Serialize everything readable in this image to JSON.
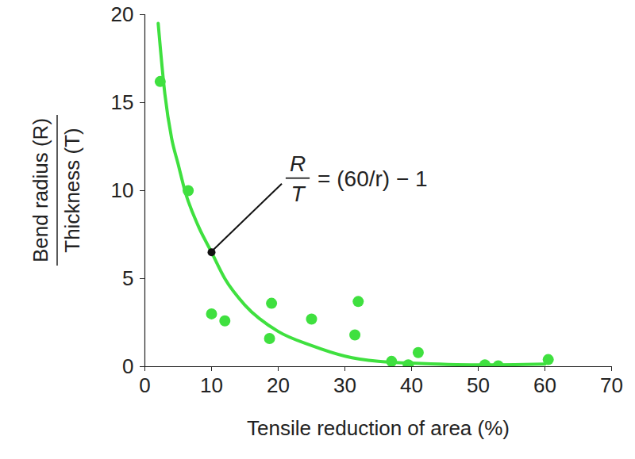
{
  "chart_data": {
    "type": "scatter",
    "x_label": "Tensile reduction of area (%)",
    "y_label": {
      "numerator": "Bend radius (R)",
      "denominator": "Thickness (T)"
    },
    "xlim": [
      0,
      70
    ],
    "xticks": [
      0,
      10,
      20,
      30,
      40,
      50,
      60,
      70
    ],
    "ylim": [
      0,
      20
    ],
    "yticks": [
      0,
      5,
      10,
      15,
      20
    ],
    "grid": false,
    "series": [
      {
        "type": "scatter",
        "color": "#3fe03f",
        "marker": "circle",
        "x": [
          2.3,
          6.5,
          10,
          12,
          18.7,
          19,
          25,
          31.5,
          32,
          37,
          39.5,
          41,
          51,
          53,
          60.5
        ],
        "values": [
          16.2,
          10,
          3,
          2.6,
          1.6,
          3.6,
          2.7,
          1.8,
          3.7,
          0.3,
          0.1,
          0.8,
          0.1,
          0.05,
          0.4
        ]
      },
      {
        "type": "line",
        "color": "#3fe03f",
        "line_style": "solid",
        "x": [
          2,
          3,
          4,
          5,
          6,
          8,
          10,
          12,
          15,
          20,
          25,
          30,
          35,
          40,
          50,
          60
        ],
        "values": [
          19.5,
          15.5,
          13,
          11.5,
          10,
          8,
          6.5,
          5,
          3.5,
          2,
          1.2,
          0.6,
          0.3,
          0.2,
          0.1,
          0.15
        ]
      }
    ],
    "annotation": {
      "numerator": "R",
      "denominator": "T",
      "text": "= (60/r) − 1",
      "x": 10,
      "y": 6.5
    }
  }
}
